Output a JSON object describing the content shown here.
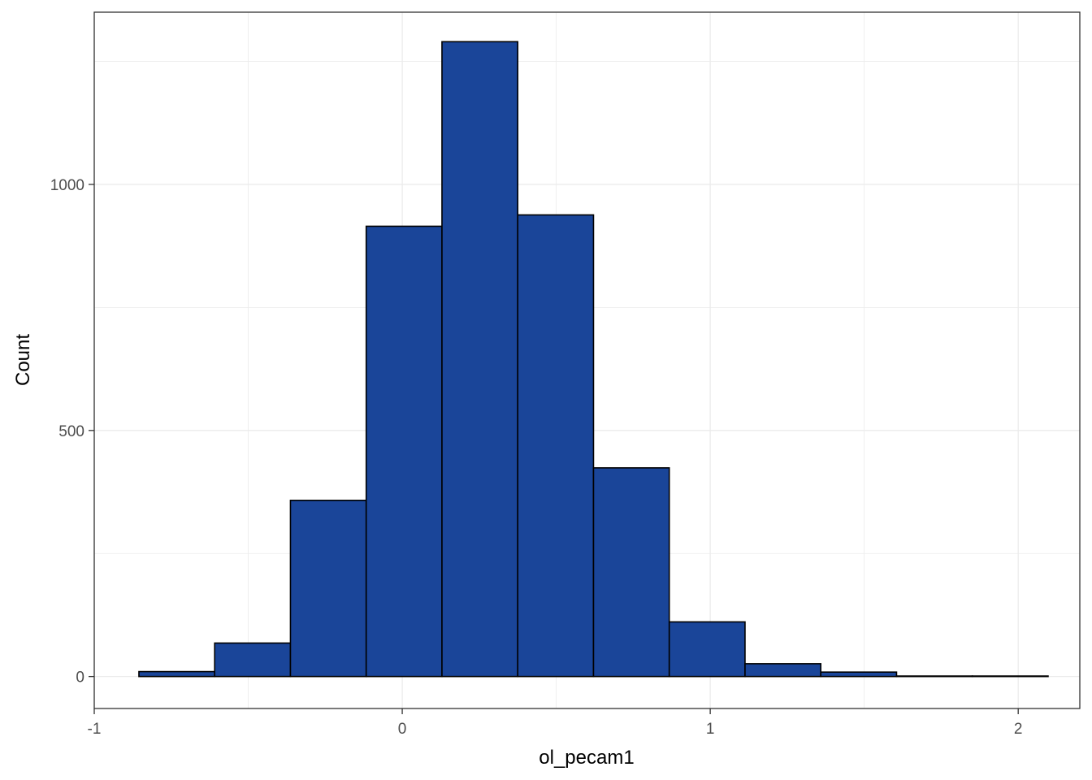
{
  "chart_data": {
    "type": "bar",
    "subtype": "histogram",
    "xlabel": "ol_pecam1",
    "ylabel": "Count",
    "bar_color": "#1a4599",
    "bar_edge_color": "#000000",
    "xlim": [
      -1.0,
      2.2
    ],
    "ylim": [
      -65,
      1350
    ],
    "x_ticks": [
      -1,
      0,
      1,
      2
    ],
    "x_tick_labels": [
      "-1",
      "0",
      "1",
      "2"
    ],
    "y_ticks": [
      0,
      500,
      1000
    ],
    "y_tick_labels": [
      "0",
      "500",
      "1000"
    ],
    "grid": true,
    "bins": [
      {
        "x0": -0.855,
        "x1": -0.609,
        "count": 10
      },
      {
        "x0": -0.609,
        "x1": -0.363,
        "count": 68
      },
      {
        "x0": -0.363,
        "x1": -0.117,
        "count": 358
      },
      {
        "x0": -0.117,
        "x1": 0.129,
        "count": 915
      },
      {
        "x0": 0.129,
        "x1": 0.375,
        "count": 1290
      },
      {
        "x0": 0.375,
        "x1": 0.621,
        "count": 938
      },
      {
        "x0": 0.621,
        "x1": 0.867,
        "count": 424
      },
      {
        "x0": 0.867,
        "x1": 1.113,
        "count": 111
      },
      {
        "x0": 1.113,
        "x1": 1.359,
        "count": 26
      },
      {
        "x0": 1.359,
        "x1": 1.605,
        "count": 9
      },
      {
        "x0": 1.605,
        "x1": 1.851,
        "count": 1
      },
      {
        "x0": 1.851,
        "x1": 2.097,
        "count": 1
      }
    ]
  }
}
